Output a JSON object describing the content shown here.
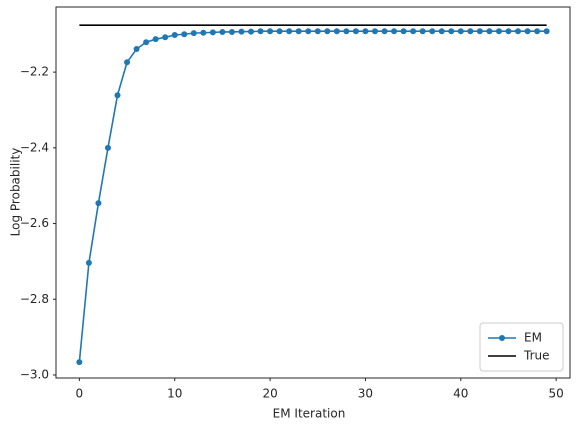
{
  "chart_data": {
    "type": "line",
    "xlabel": "EM Iteration",
    "ylabel": "Log Probability",
    "xlim": [
      -2.45,
      51.45
    ],
    "ylim": [
      -3.008,
      -2.028
    ],
    "xticks": [
      0,
      10,
      20,
      30,
      40,
      50
    ],
    "yticks": [
      {
        "value": -3.0,
        "label": "−3.0"
      },
      {
        "value": -2.8,
        "label": "−2.8"
      },
      {
        "value": -2.6,
        "label": "−2.6"
      },
      {
        "value": -2.4,
        "label": "−2.4"
      },
      {
        "value": -2.2,
        "label": "−2.2"
      }
    ],
    "grid": false,
    "legend": "lower right",
    "series": [
      {
        "name": "EM",
        "color": "#1f77b4",
        "marker": true,
        "x": [
          0,
          1,
          2,
          3,
          4,
          5,
          6,
          7,
          8,
          9,
          10,
          11,
          12,
          13,
          14,
          15,
          16,
          17,
          18,
          19,
          20,
          21,
          22,
          23,
          24,
          25,
          26,
          27,
          28,
          29,
          30,
          31,
          32,
          33,
          34,
          35,
          36,
          37,
          38,
          39,
          40,
          41,
          42,
          43,
          44,
          45,
          46,
          47,
          48,
          49
        ],
        "values": [
          -2.966,
          -2.704,
          -2.546,
          -2.4,
          -2.261,
          -2.174,
          -2.139,
          -2.121,
          -2.113,
          -2.108,
          -2.102,
          -2.1,
          -2.097,
          -2.096,
          -2.095,
          -2.094,
          -2.094,
          -2.093,
          -2.093,
          -2.092,
          -2.092,
          -2.092,
          -2.092,
          -2.092,
          -2.092,
          -2.092,
          -2.092,
          -2.092,
          -2.092,
          -2.092,
          -2.092,
          -2.092,
          -2.092,
          -2.092,
          -2.092,
          -2.092,
          -2.092,
          -2.092,
          -2.092,
          -2.092,
          -2.092,
          -2.092,
          -2.092,
          -2.092,
          -2.092,
          -2.092,
          -2.092,
          -2.092,
          -2.092,
          -2.092
        ]
      },
      {
        "name": "True",
        "color": "#000000",
        "marker": false,
        "x": [
          0,
          49
        ],
        "values": [
          -2.076,
          -2.076
        ]
      }
    ]
  }
}
